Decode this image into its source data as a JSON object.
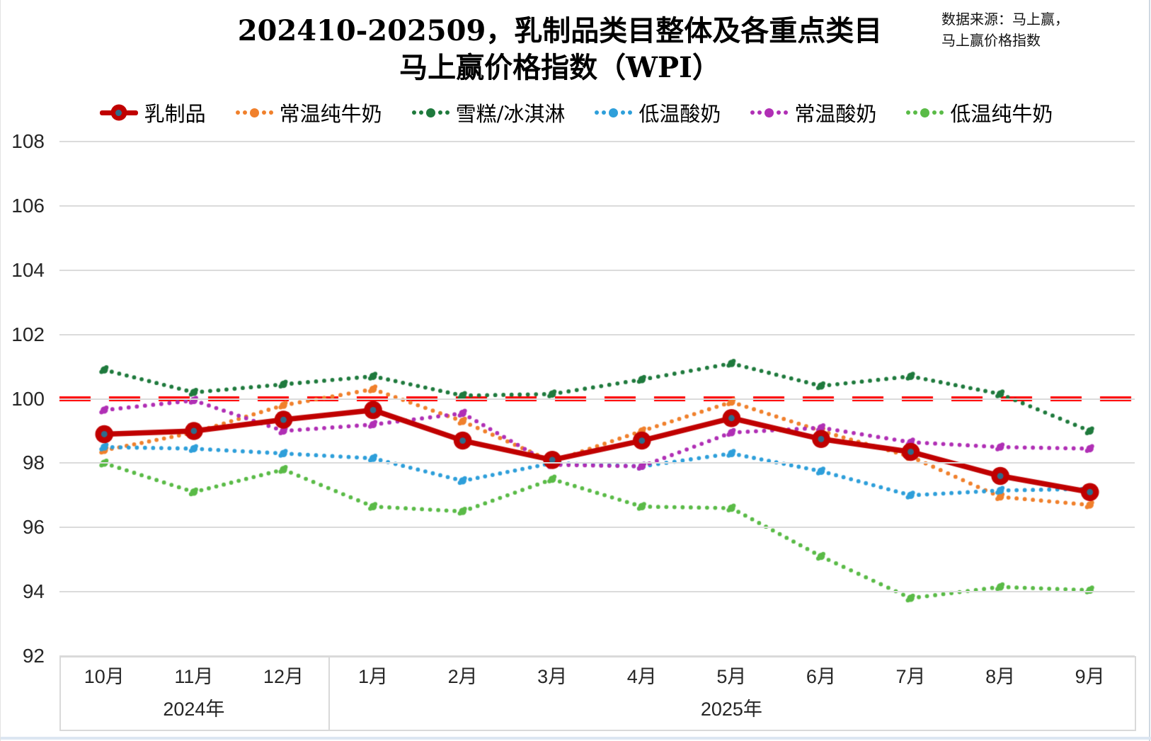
{
  "header": {
    "title_line1": "202410-202509，乳制品类目整体及各重点类目",
    "title_line2": "马上赢价格指数（WPI）",
    "source_line1": "数据来源：马上赢，",
    "source_line2": "马上赢价格指数"
  },
  "chart_data": {
    "type": "line",
    "title": "202410-202509，乳制品类目整体及各重点类目马上赢价格指数（WPI）",
    "categories": [
      "10月",
      "11月",
      "12月",
      "1月",
      "2月",
      "3月",
      "4月",
      "5月",
      "6月",
      "7月",
      "8月",
      "9月"
    ],
    "year_groups": [
      {
        "label": "2024年",
        "months": 3
      },
      {
        "label": "2025年",
        "months": 9
      }
    ],
    "y_ticks": [
      108,
      106,
      104,
      102,
      100,
      98,
      96,
      94,
      92
    ],
    "ylim": [
      92,
      108
    ],
    "grid": true,
    "legend_position": "top",
    "reference_line": {
      "value": 100,
      "style": "dashed",
      "color": "#fe0202"
    },
    "colors": {
      "gridline": "#dbdbdb",
      "axis_box_border": "#d9d9d9",
      "marker_center": "#2e6c8c"
    },
    "series": [
      {
        "name": "乳制品",
        "style": "solid",
        "color": "#c00000",
        "values": [
          98.9,
          99.0,
          99.35,
          99.65,
          98.7,
          98.1,
          98.7,
          99.4,
          98.75,
          98.35,
          97.6,
          97.1
        ]
      },
      {
        "name": "常温纯牛奶",
        "style": "dotted",
        "color": "#f0802c",
        "values": [
          98.4,
          98.95,
          99.8,
          100.3,
          99.3,
          98.05,
          99.0,
          99.9,
          99.0,
          98.2,
          96.95,
          96.7
        ]
      },
      {
        "name": "雪糕/冰淇淋",
        "style": "dotted",
        "color": "#1f7a3d",
        "values": [
          100.9,
          100.2,
          100.45,
          100.7,
          100.1,
          100.15,
          100.6,
          101.1,
          100.4,
          100.7,
          100.15,
          99.0
        ]
      },
      {
        "name": "低温酸奶",
        "style": "dotted",
        "color": "#2e9fda",
        "values": [
          98.5,
          98.45,
          98.3,
          98.15,
          97.45,
          98.0,
          97.9,
          98.3,
          97.75,
          97.0,
          97.15,
          97.2
        ]
      },
      {
        "name": "常温酸奶",
        "style": "dotted",
        "color": "#b02fb5",
        "values": [
          99.65,
          99.95,
          99.0,
          99.2,
          99.55,
          97.95,
          97.9,
          98.95,
          99.1,
          98.65,
          98.5,
          98.45
        ]
      },
      {
        "name": "低温纯牛奶",
        "style": "dotted",
        "color": "#5abb47",
        "values": [
          98.0,
          97.1,
          97.8,
          96.65,
          96.5,
          97.5,
          96.65,
          96.6,
          95.1,
          93.8,
          94.15,
          94.05
        ]
      }
    ]
  }
}
